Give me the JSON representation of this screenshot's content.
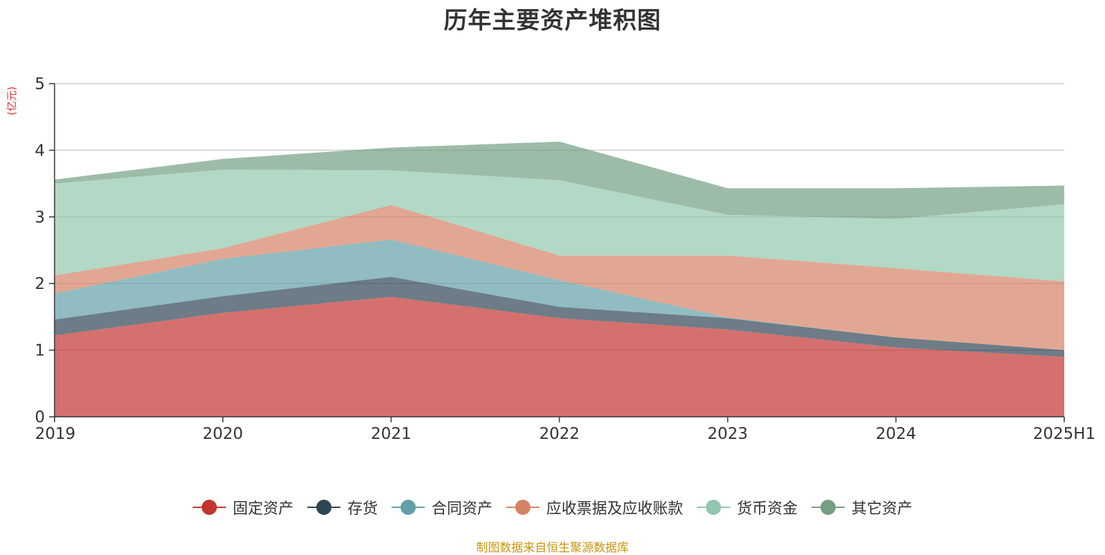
{
  "chart_data": {
    "type": "area",
    "stacked": true,
    "title": "历年主要资产堆积图",
    "ylabel": "(亿元)",
    "xlabel": "",
    "categories": [
      "2019",
      "2020",
      "2021",
      "2022",
      "2023",
      "2024",
      "2025H1"
    ],
    "ylim": [
      0,
      5
    ],
    "yticks": [
      0,
      1,
      2,
      3,
      4,
      5
    ],
    "grid": true,
    "legend_position": "bottom",
    "series": [
      {
        "name": "固定资产",
        "color": "#c23531",
        "values": [
          1.22,
          1.56,
          1.8,
          1.48,
          1.31,
          1.04,
          0.9
        ]
      },
      {
        "name": "存货",
        "color": "#2f4554",
        "values": [
          0.24,
          0.25,
          0.3,
          0.17,
          0.17,
          0.15,
          0.1
        ]
      },
      {
        "name": "合同资产",
        "color": "#61a0a8",
        "values": [
          0.39,
          0.56,
          0.56,
          0.4,
          0.01,
          0.0,
          0.0
        ]
      },
      {
        "name": "应收票据及应收账款",
        "color": "#d48265",
        "values": [
          0.27,
          0.16,
          0.52,
          0.37,
          0.93,
          1.04,
          1.03
        ]
      },
      {
        "name": "货币资金",
        "color": "#91c7ae",
        "values": [
          1.38,
          1.18,
          0.52,
          1.13,
          0.61,
          0.74,
          1.16
        ]
      },
      {
        "name": "其它资产",
        "color": "#749f83",
        "values": [
          0.06,
          0.16,
          0.34,
          0.58,
          0.4,
          0.46,
          0.28
        ]
      }
    ]
  },
  "source_note": "制图数据来自恒生聚源数据库"
}
